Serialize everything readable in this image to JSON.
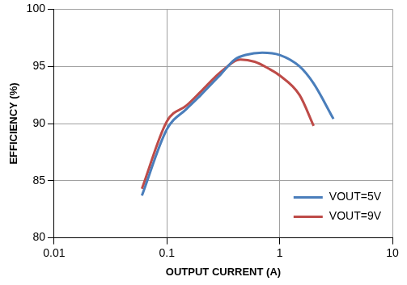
{
  "chart_data": {
    "type": "line",
    "x_label": "OUTPUT CURRENT (A)",
    "y_label": "EFFICIENCY (%)",
    "log": "x",
    "grid": true,
    "legend": "lower right",
    "xlim": [
      0.01,
      10
    ],
    "xticks": [
      0.01,
      0.1,
      1,
      10
    ],
    "ylim": [
      80,
      100
    ],
    "yticks": [
      80,
      85,
      90,
      95,
      100
    ],
    "series": [
      {
        "name": "VOUT=5V",
        "color": "#4a7ebb",
        "x": [
          0.06,
          0.1,
          0.15,
          0.2,
          0.3,
          0.4,
          0.5,
          0.7,
          1,
          1.5,
          2,
          3
        ],
        "values": [
          83.7,
          89.5,
          91.3,
          92.5,
          94.3,
          95.6,
          96.0,
          96.2,
          96.0,
          95.0,
          93.5,
          90.4
        ]
      },
      {
        "name": "VOUT=9V",
        "color": "#be4b48",
        "x": [
          0.06,
          0.1,
          0.15,
          0.2,
          0.3,
          0.45,
          0.6,
          0.8,
          1,
          1.5,
          2
        ],
        "values": [
          84.3,
          90.2,
          91.6,
          92.8,
          94.5,
          95.6,
          95.4,
          94.8,
          94.2,
          92.5,
          89.8
        ]
      }
    ]
  }
}
